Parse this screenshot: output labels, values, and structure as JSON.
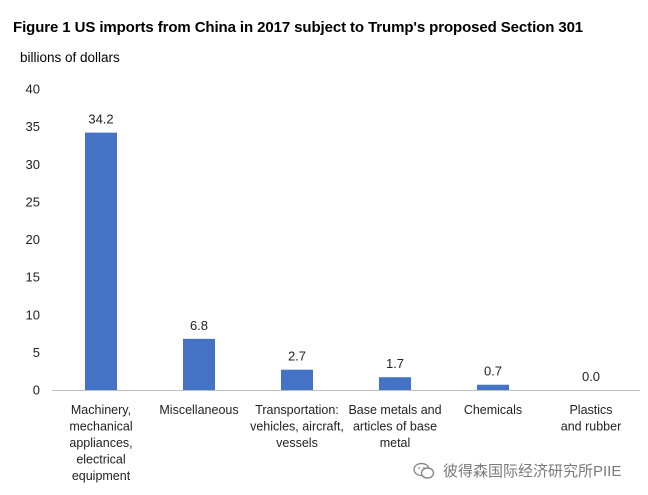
{
  "watermark": "彼得森国际经济研究所PIIE",
  "chart_data": {
    "type": "bar",
    "title": "Figure 1 US imports from China in 2017 subject to Trump's proposed Section 301",
    "ylabel": "billions of dollars",
    "xlabel": "",
    "ylim": [
      0,
      40
    ],
    "yticks": [
      0,
      5,
      10,
      15,
      20,
      25,
      30,
      35,
      40
    ],
    "grid": false,
    "legend": "none",
    "categories": [
      [
        "Machinery,",
        "mechanical",
        "appliances,",
        "electrical",
        "equipment"
      ],
      [
        "Miscellaneous"
      ],
      [
        "Transportation:",
        "vehicles, aircraft,",
        "vessels"
      ],
      [
        "Base metals and",
        "articles of base",
        "metal"
      ],
      [
        "Chemicals"
      ],
      [
        "Plastics",
        "and rubber"
      ]
    ],
    "values": [
      34.2,
      6.8,
      2.7,
      1.7,
      0.7,
      0.0
    ],
    "data_labels": [
      "34.2",
      "6.8",
      "2.7",
      "1.7",
      "0.7",
      "0.0"
    ],
    "colors": {
      "bar": "#4472c4",
      "axis": "#bfbfbf"
    }
  }
}
